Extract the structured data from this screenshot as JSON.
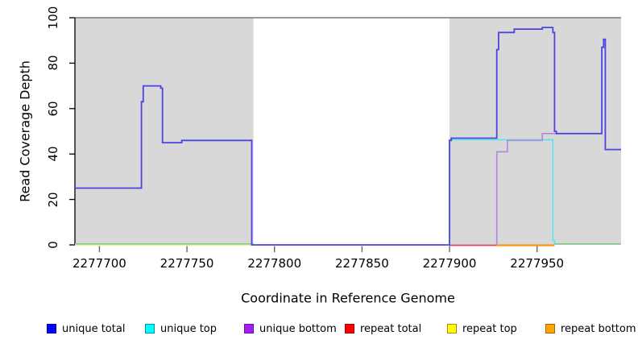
{
  "chart_data": {
    "type": "line",
    "title": "",
    "xlabel": "Coordinate in Reference Genome",
    "ylabel": "Read Coverage Depth",
    "xlim": [
      2277686,
      2277998
    ],
    "ylim": [
      0,
      100
    ],
    "grid": false,
    "legend_position": "bottom",
    "shaded_color": "#D8D8D8",
    "shaded_regions": [
      {
        "x1": 2277686,
        "x2": 2277788
      },
      {
        "x1": 2277900,
        "x2": 2277998
      }
    ],
    "x_ticks": [
      {
        "value": 2277700,
        "label": "2277700"
      },
      {
        "value": 2277750,
        "label": "2277750"
      },
      {
        "value": 2277800,
        "label": "2277800"
      },
      {
        "value": 2277850,
        "label": "2277850"
      },
      {
        "value": 2277900,
        "label": "2277900"
      },
      {
        "value": 2277950,
        "label": "2277950"
      }
    ],
    "y_ticks": [
      {
        "value": 0,
        "label": "0"
      },
      {
        "value": 20,
        "label": "20"
      },
      {
        "value": 40,
        "label": "40"
      },
      {
        "value": 60,
        "label": "60"
      },
      {
        "value": 80,
        "label": "80"
      },
      {
        "value": 100,
        "label": "100"
      }
    ],
    "series": [
      {
        "name": "unique total",
        "color": "#4B45DE",
        "width": 1.8,
        "z": 7,
        "dy": 0,
        "paths": [
          [
            [
              2277686,
              25
            ],
            [
              2277724,
              25
            ],
            [
              2277724,
              63
            ],
            [
              2277725,
              63
            ],
            [
              2277725,
              70
            ],
            [
              2277735,
              70
            ],
            [
              2277735,
              69
            ],
            [
              2277736,
              69
            ],
            [
              2277736,
              45
            ],
            [
              2277747,
              45
            ],
            [
              2277747,
              46
            ],
            [
              2277787,
              46
            ],
            [
              2277787,
              0
            ],
            [
              2277900,
              0
            ],
            [
              2277900,
              46
            ],
            [
              2277901,
              46
            ],
            [
              2277901,
              47
            ],
            [
              2277927,
              47
            ],
            [
              2277927,
              86
            ],
            [
              2277928,
              86
            ],
            [
              2277928,
              93.5
            ],
            [
              2277937,
              93.5
            ],
            [
              2277937,
              95
            ],
            [
              2277953,
              95
            ],
            [
              2277953,
              95.7
            ],
            [
              2277959,
              95.7
            ],
            [
              2277959,
              93.5
            ],
            [
              2277960,
              93.5
            ],
            [
              2277960,
              50
            ],
            [
              2277961,
              50
            ],
            [
              2277961,
              49
            ],
            [
              2277987,
              49
            ],
            [
              2277987,
              87
            ],
            [
              2277988,
              87
            ],
            [
              2277988,
              90.5
            ],
            [
              2277989,
              90.5
            ],
            [
              2277989,
              42
            ],
            [
              2277998,
              42
            ]
          ]
        ]
      },
      {
        "name": "unique top",
        "color": "#58E6EE",
        "width": 1.6,
        "z": 5,
        "dy": 0,
        "paths": [
          [
            [
              2277900,
              0
            ],
            [
              2277900,
              46.3
            ],
            [
              2277959,
              46.3
            ],
            [
              2277959,
              2
            ],
            [
              2277960,
              2
            ],
            [
              2277960,
              0
            ]
          ]
        ]
      },
      {
        "name": "unique bottom",
        "color": "#B286DC",
        "width": 1.6,
        "z": 6,
        "dy": 0,
        "paths": [
          [
            [
              2277927,
              0
            ],
            [
              2277927,
              41
            ],
            [
              2277933,
              41
            ],
            [
              2277933,
              46
            ],
            [
              2277953,
              46
            ],
            [
              2277953,
              49
            ],
            [
              2277961,
              49
            ]
          ]
        ]
      },
      {
        "name": "repeat total",
        "color": "#DC4760",
        "width": 1.8,
        "z": 3,
        "dy": 0.5,
        "paths": [
          [
            [
              2277900,
              0
            ],
            [
              2277927,
              0
            ]
          ]
        ]
      },
      {
        "name": "repeat top",
        "color": "#F2EFAE",
        "width": 2.0,
        "z": 1,
        "dy": 0.3,
        "paths": [
          [
            [
              2277686,
              0
            ],
            [
              2277788,
              0
            ]
          ]
        ]
      },
      {
        "name": "repeat bottom",
        "color": "#FF9617",
        "width": 2.2,
        "z": 4,
        "dy": 0.5,
        "paths": [
          [
            [
              2277927,
              0
            ],
            [
              2277960,
              0
            ]
          ]
        ]
      },
      {
        "name": "baseline (unlabeled green)",
        "color": "#86C986",
        "width": 1.6,
        "z": 2,
        "dy": -1.2,
        "paths": [
          [
            [
              2277686,
              0
            ],
            [
              2277788,
              0
            ]
          ],
          [
            [
              2277960,
              0
            ],
            [
              2277998,
              0
            ]
          ]
        ]
      }
    ]
  },
  "legend": {
    "items": [
      {
        "label": "unique total",
        "fill": "#0000FE",
        "border": "#0000A0"
      },
      {
        "label": "unique top",
        "fill": "#00FEFE",
        "border": "#00999E"
      },
      {
        "label": "unique bottom",
        "fill": "#A21FEF",
        "border": "#6A0DAD"
      },
      {
        "label": "repeat total",
        "fill": "#FE0000",
        "border": "#990000"
      },
      {
        "label": "repeat top",
        "fill": "#FEFE00",
        "border": "#B8860B"
      },
      {
        "label": "repeat bottom",
        "fill": "#FFA500",
        "border": "#A86400"
      }
    ]
  }
}
